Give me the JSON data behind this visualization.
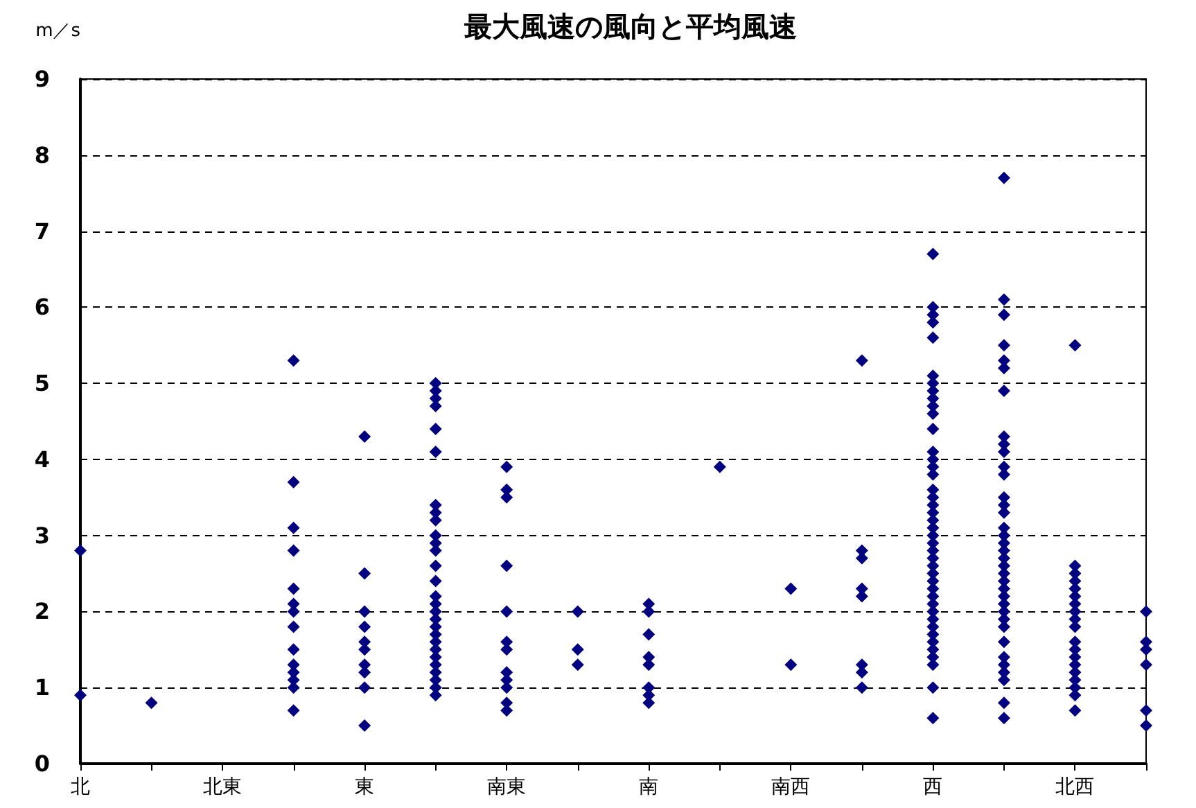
{
  "chart_data": {
    "type": "scatter",
    "title": "最大風速の風向と平均風速",
    "ylabel": "m／s",
    "categories": [
      "北",
      null,
      "北東",
      null,
      "東",
      null,
      "南東",
      null,
      "南",
      null,
      "南西",
      null,
      "西",
      null,
      "北西",
      null
    ],
    "ylim": [
      0,
      9
    ],
    "yticks": [
      0,
      1,
      2,
      3,
      4,
      5,
      6,
      7,
      8,
      9
    ],
    "grid": "y",
    "marker": "diamond",
    "series": [
      {
        "color": "#000080",
        "values": [
          2.8,
          0.8,
          null,
          5.3,
          4.3,
          5.0,
          3.9,
          2.0,
          2.1,
          3.9,
          2.3,
          5.3,
          6.7,
          7.7,
          5.5,
          2.0
        ]
      },
      {
        "color": "#000080",
        "values": [
          0.9,
          null,
          null,
          3.7,
          2.5,
          4.9,
          3.6,
          1.5,
          2.0,
          null,
          1.3,
          2.8,
          6.0,
          6.1,
          2.6,
          1.6
        ]
      },
      {
        "color": "#000080",
        "values": [
          null,
          null,
          null,
          3.1,
          2.0,
          4.8,
          3.5,
          1.3,
          1.7,
          null,
          null,
          2.7,
          5.9,
          5.9,
          2.5,
          1.5
        ]
      },
      {
        "color": "#000080",
        "values": [
          null,
          null,
          null,
          2.8,
          1.8,
          4.7,
          2.6,
          null,
          1.4,
          null,
          null,
          2.3,
          5.8,
          5.5,
          2.4,
          1.3
        ]
      },
      {
        "color": "#000080",
        "values": [
          null,
          null,
          null,
          2.3,
          1.6,
          4.4,
          2.0,
          null,
          1.3,
          null,
          null,
          2.2,
          5.6,
          5.3,
          2.3,
          0.7
        ]
      },
      {
        "color": "#000080",
        "values": [
          null,
          null,
          null,
          2.1,
          1.5,
          4.1,
          1.6,
          null,
          1.0,
          null,
          null,
          1.3,
          5.1,
          5.2,
          2.2,
          0.5
        ]
      },
      {
        "color": "#000080",
        "values": [
          null,
          null,
          null,
          2.0,
          1.3,
          3.4,
          1.5,
          null,
          0.9,
          null,
          null,
          1.2,
          5.0,
          4.9,
          2.1,
          null
        ]
      },
      {
        "color": "#000080",
        "values": [
          null,
          null,
          null,
          1.8,
          1.2,
          3.3,
          1.2,
          null,
          0.8,
          null,
          null,
          1.0,
          4.9,
          4.3,
          2.0,
          null
        ]
      },
      {
        "color": "#000080",
        "values": [
          null,
          null,
          null,
          1.5,
          1.0,
          3.2,
          1.1,
          null,
          null,
          null,
          null,
          null,
          4.8,
          4.2,
          1.9,
          null
        ]
      },
      {
        "color": "#000080",
        "values": [
          null,
          null,
          null,
          1.3,
          0.5,
          3.0,
          1.0,
          null,
          null,
          null,
          null,
          null,
          4.7,
          4.1,
          1.8,
          null
        ]
      },
      {
        "color": "#000080",
        "values": [
          null,
          null,
          null,
          1.2,
          null,
          2.9,
          0.8,
          null,
          null,
          null,
          null,
          null,
          4.6,
          3.9,
          1.6,
          null
        ]
      },
      {
        "color": "#000080",
        "values": [
          null,
          null,
          null,
          1.1,
          null,
          2.8,
          0.7,
          null,
          null,
          null,
          null,
          null,
          4.4,
          3.8,
          1.5,
          null
        ]
      },
      {
        "color": "#000080",
        "values": [
          null,
          null,
          null,
          1.0,
          null,
          2.6,
          null,
          null,
          null,
          null,
          null,
          null,
          4.1,
          3.5,
          1.4,
          null
        ]
      },
      {
        "color": "#000080",
        "values": [
          null,
          null,
          null,
          0.7,
          null,
          2.4,
          null,
          null,
          null,
          null,
          null,
          null,
          4.0,
          3.4,
          1.3,
          null
        ]
      },
      {
        "color": "#000080",
        "values": [
          null,
          null,
          null,
          null,
          null,
          2.2,
          null,
          null,
          null,
          null,
          null,
          null,
          3.9,
          3.3,
          1.2,
          null
        ]
      },
      {
        "color": "#000080",
        "values": [
          null,
          null,
          null,
          null,
          null,
          2.1,
          null,
          null,
          null,
          null,
          null,
          null,
          3.8,
          3.1,
          1.1,
          null
        ]
      },
      {
        "color": "#000080",
        "values": [
          null,
          null,
          null,
          null,
          null,
          2.0,
          null,
          null,
          null,
          null,
          null,
          null,
          3.6,
          3.0,
          1.0,
          null
        ]
      },
      {
        "color": "#000080",
        "values": [
          null,
          null,
          null,
          null,
          null,
          1.9,
          null,
          null,
          null,
          null,
          null,
          null,
          3.5,
          2.9,
          0.9,
          null
        ]
      },
      {
        "color": "#000080",
        "values": [
          null,
          null,
          null,
          null,
          null,
          1.8,
          null,
          null,
          null,
          null,
          null,
          null,
          3.4,
          2.8,
          0.7,
          null
        ]
      },
      {
        "color": "#000080",
        "values": [
          null,
          null,
          null,
          null,
          null,
          1.7,
          null,
          null,
          null,
          null,
          null,
          null,
          3.3,
          2.7,
          null,
          null
        ]
      },
      {
        "color": "#000080",
        "values": [
          null,
          null,
          null,
          null,
          null,
          1.6,
          null,
          null,
          null,
          null,
          null,
          null,
          3.2,
          2.6,
          null,
          null
        ]
      },
      {
        "color": "#000080",
        "values": [
          null,
          null,
          null,
          null,
          null,
          1.5,
          null,
          null,
          null,
          null,
          null,
          null,
          3.1,
          2.5,
          null,
          null
        ]
      },
      {
        "color": "#000080",
        "values": [
          null,
          null,
          null,
          null,
          null,
          1.4,
          null,
          null,
          null,
          null,
          null,
          null,
          3.0,
          2.4,
          null,
          null
        ]
      },
      {
        "color": "#000080",
        "values": [
          null,
          null,
          null,
          null,
          null,
          1.3,
          null,
          null,
          null,
          null,
          null,
          null,
          2.9,
          2.3,
          null,
          null
        ]
      },
      {
        "color": "#000080",
        "values": [
          null,
          null,
          null,
          null,
          null,
          1.2,
          null,
          null,
          null,
          null,
          null,
          null,
          2.8,
          2.2,
          null,
          null
        ]
      },
      {
        "color": "#000080",
        "values": [
          null,
          null,
          null,
          null,
          null,
          1.1,
          null,
          null,
          null,
          null,
          null,
          null,
          2.7,
          2.1,
          null,
          null
        ]
      },
      {
        "color": "#000080",
        "values": [
          null,
          null,
          null,
          null,
          null,
          1.0,
          null,
          null,
          null,
          null,
          null,
          null,
          2.6,
          2.0,
          null,
          null
        ]
      },
      {
        "color": "#000080",
        "values": [
          null,
          null,
          null,
          null,
          null,
          0.9,
          null,
          null,
          null,
          null,
          null,
          null,
          2.5,
          1.9,
          null,
          null
        ]
      },
      {
        "color": "#000080",
        "values": [
          null,
          null,
          null,
          null,
          null,
          null,
          null,
          null,
          null,
          null,
          null,
          null,
          2.4,
          1.8,
          null,
          null
        ]
      },
      {
        "color": "#000080",
        "values": [
          null,
          null,
          null,
          null,
          null,
          null,
          null,
          null,
          null,
          null,
          null,
          null,
          2.3,
          1.6,
          null,
          null
        ]
      },
      {
        "color": "#000080",
        "values": [
          null,
          null,
          null,
          null,
          null,
          null,
          null,
          null,
          null,
          null,
          null,
          null,
          2.2,
          1.4,
          null,
          null
        ]
      },
      {
        "color": "#000080",
        "values": [
          null,
          null,
          null,
          null,
          null,
          null,
          null,
          null,
          null,
          null,
          null,
          null,
          2.1,
          1.3,
          null,
          null
        ]
      },
      {
        "color": "#000080",
        "values": [
          null,
          null,
          null,
          null,
          null,
          null,
          null,
          null,
          null,
          null,
          null,
          null,
          2.0,
          1.2,
          null,
          null
        ]
      },
      {
        "color": "#000080",
        "values": [
          null,
          null,
          null,
          null,
          null,
          null,
          null,
          null,
          null,
          null,
          null,
          null,
          1.9,
          1.1,
          null,
          null
        ]
      },
      {
        "color": "#000080",
        "values": [
          null,
          null,
          null,
          null,
          null,
          null,
          null,
          null,
          null,
          null,
          null,
          null,
          1.8,
          0.8,
          null,
          null
        ]
      },
      {
        "color": "#000080",
        "values": [
          null,
          null,
          null,
          null,
          null,
          null,
          null,
          null,
          null,
          null,
          null,
          null,
          1.7,
          0.6,
          null,
          null
        ]
      },
      {
        "color": "#000080",
        "values": [
          null,
          null,
          null,
          null,
          null,
          null,
          null,
          null,
          null,
          null,
          null,
          null,
          1.6,
          null,
          null,
          null
        ]
      },
      {
        "color": "#000080",
        "values": [
          null,
          null,
          null,
          null,
          null,
          null,
          null,
          null,
          null,
          null,
          null,
          null,
          1.5,
          null,
          null,
          null
        ]
      },
      {
        "color": "#000080",
        "values": [
          null,
          null,
          null,
          null,
          null,
          null,
          null,
          null,
          null,
          null,
          null,
          null,
          1.4,
          null,
          null,
          null
        ]
      },
      {
        "color": "#000080",
        "values": [
          null,
          null,
          null,
          null,
          null,
          null,
          null,
          null,
          null,
          null,
          null,
          null,
          1.3,
          null,
          null,
          null
        ]
      },
      {
        "color": "#000080",
        "values": [
          null,
          null,
          null,
          null,
          null,
          null,
          null,
          null,
          null,
          null,
          null,
          null,
          1.0,
          null,
          null,
          null
        ]
      },
      {
        "color": "#000080",
        "values": [
          null,
          null,
          null,
          null,
          null,
          null,
          null,
          null,
          null,
          null,
          null,
          null,
          0.6,
          null,
          null,
          null
        ]
      }
    ]
  }
}
